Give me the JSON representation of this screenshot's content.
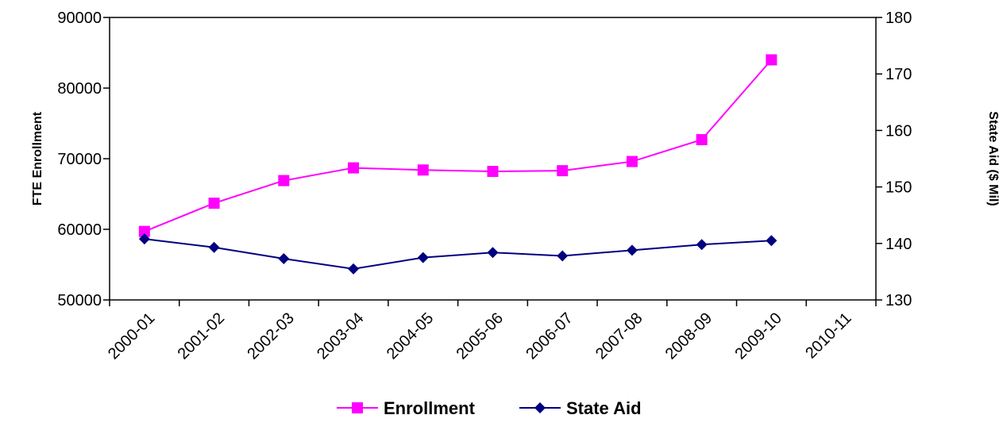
{
  "chart_data": {
    "type": "line",
    "categories": [
      "2000-01",
      "2001-02",
      "2002-03",
      "2003-04",
      "2004-05",
      "2005-06",
      "2006-07",
      "2007-08",
      "2008-09",
      "2009-10",
      "2010-11"
    ],
    "left_axis": {
      "label": "FTE Enrollment",
      "ylim": [
        50000,
        90000
      ],
      "ticks": [
        50000,
        60000,
        70000,
        80000,
        90000
      ],
      "tick_labels": [
        "50000",
        "60000",
        "70000",
        "80000",
        "90000"
      ]
    },
    "right_axis": {
      "label": "State Aid ($ Mil)",
      "ylim": [
        130,
        180
      ],
      "ticks": [
        130,
        140,
        150,
        160,
        170,
        180
      ],
      "tick_labels": [
        "130",
        "140",
        "150",
        "160",
        "170",
        "180"
      ]
    },
    "series": [
      {
        "name": "Enrollment",
        "axis": "left",
        "color": "#FF00FF",
        "marker": "square",
        "values": [
          59700,
          63700,
          66900,
          68700,
          68400,
          68200,
          68300,
          69600,
          72700,
          84000,
          null
        ]
      },
      {
        "name": "State Aid",
        "axis": "right",
        "color": "#000080",
        "marker": "diamond",
        "values": [
          140.8,
          139.3,
          137.3,
          135.5,
          137.5,
          138.4,
          137.8,
          138.8,
          139.8,
          140.5,
          null
        ]
      }
    ],
    "legend_position": "bottom",
    "grid": false
  }
}
